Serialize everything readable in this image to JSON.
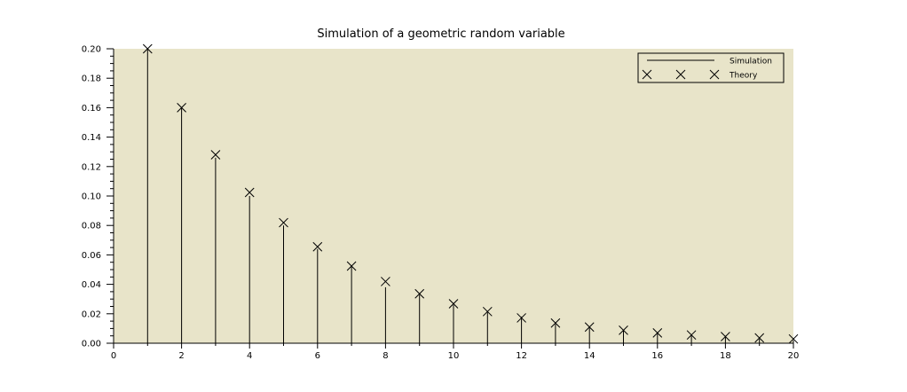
{
  "chart_data": {
    "type": "stem",
    "title": "Simulation of a geometric random variable",
    "xlabel": "",
    "ylabel": "",
    "xlim": [
      0,
      20
    ],
    "ylim": [
      0,
      0.2
    ],
    "x_ticks": [
      "0",
      "2",
      "4",
      "6",
      "8",
      "10",
      "12",
      "14",
      "16",
      "18",
      "20"
    ],
    "y_ticks": [
      "0.00",
      "0.02",
      "0.04",
      "0.06",
      "0.08",
      "0.10",
      "0.12",
      "0.14",
      "0.16",
      "0.18",
      "0.20"
    ],
    "grid": false,
    "legend_position": "top-right",
    "plot_background": "#e8e4c9",
    "series": [
      {
        "name": "Simulation",
        "style": "stem",
        "color": "#000000",
        "x": [
          1,
          2,
          3,
          4,
          5,
          6,
          7,
          8,
          9,
          10,
          11,
          12,
          13,
          14,
          15,
          16,
          17,
          18,
          19,
          20
        ],
        "values": [
          0.2,
          0.16,
          0.126,
          0.1,
          0.08,
          0.064,
          0.052,
          0.038,
          0.033,
          0.026,
          0.021,
          0.018,
          0.013,
          0.011,
          0.009,
          0.007,
          0.006,
          0.005,
          0.003,
          0.002
        ]
      },
      {
        "name": "Theory",
        "style": "x-marker",
        "color": "#000000",
        "x": [
          1,
          2,
          3,
          4,
          5,
          6,
          7,
          8,
          9,
          10,
          11,
          12,
          13,
          14,
          15,
          16,
          17,
          18,
          19,
          20
        ],
        "values": [
          0.2,
          0.16,
          0.128,
          0.1024,
          0.0819,
          0.0655,
          0.0524,
          0.0419,
          0.0336,
          0.0268,
          0.0215,
          0.0172,
          0.0137,
          0.011,
          0.0088,
          0.007,
          0.0056,
          0.0045,
          0.0036,
          0.0029
        ]
      }
    ]
  }
}
